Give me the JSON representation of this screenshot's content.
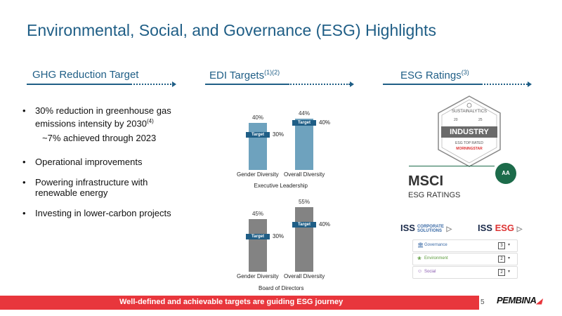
{
  "title": "Environmental, Social, and Governance (ESG) Highlights",
  "sections": {
    "ghg": {
      "heading": "GHG Reduction Target"
    },
    "edi": {
      "heading": "EDI Targets",
      "heading_sup": "(1)(2)"
    },
    "ratings": {
      "heading": "ESG Ratings",
      "heading_sup": "(3)"
    }
  },
  "ghg_bullets": {
    "b1_text": "30% reduction in greenhouse gas emissions intensity by 2030",
    "b1_sup": "(4)",
    "b1_sub": "~7% achieved through 2023",
    "b2": "Operational improvements",
    "b3": "Powering infrastructure with renewable energy",
    "b4": "Investing in lower-carbon projects"
  },
  "chart_data": [
    {
      "type": "bar",
      "title": "Executive Leadership",
      "categories": [
        "Gender Diversity",
        "Overall Diversity"
      ],
      "values": [
        40,
        44
      ],
      "value_labels": [
        "40%",
        "44%"
      ],
      "targets": [
        30,
        40
      ],
      "target_labels": [
        "30%",
        "40%"
      ],
      "target_marker_label": "Target",
      "ylim": [
        0,
        60
      ],
      "color": "#6ea2be"
    },
    {
      "type": "bar",
      "title": "Board of Directors",
      "categories": [
        "Gender Diversity",
        "Overall Diversity"
      ],
      "values": [
        45,
        55
      ],
      "value_labels": [
        "45%",
        "55%"
      ],
      "targets": [
        30,
        40
      ],
      "target_labels": [
        "30%",
        "40%"
      ],
      "target_marker_label": "Target",
      "ylim": [
        0,
        60
      ],
      "color": "#838383"
    }
  ],
  "sustainalytics": {
    "top": "SUSTAINALYTICS",
    "year_left": "20",
    "year_right": "25",
    "middle": "INDUSTRY",
    "bottom": "ESG TOP RATED",
    "brand": "MORNINGSTAR"
  },
  "msci": {
    "name": "MSCI",
    "sub": "ESG RATINGS",
    "rating": "AA"
  },
  "iss": {
    "corporate_main": "ISS",
    "corporate_small": "CORPORATE",
    "corporate_small2": "SOLUTIONS",
    "esg_main": "ISS",
    "esg_suffix": "ESG"
  },
  "quality_score": [
    {
      "label": "Governance",
      "score": "3",
      "icon": "bank-icon"
    },
    {
      "label": "Environment",
      "score": "2",
      "icon": "leaf-icon"
    },
    {
      "label": "Social",
      "score": "2",
      "icon": "people-icon"
    }
  ],
  "footer": {
    "text": "Well-defined and achievable targets are guiding ESG journey",
    "page": "5",
    "logo": "PEMBINA"
  },
  "colors": {
    "accent": "#1f5e86",
    "footer": "#e8363c",
    "exec_bar": "#6ea2be",
    "board_bar": "#838383",
    "msci_badge": "#1c6b4a"
  }
}
